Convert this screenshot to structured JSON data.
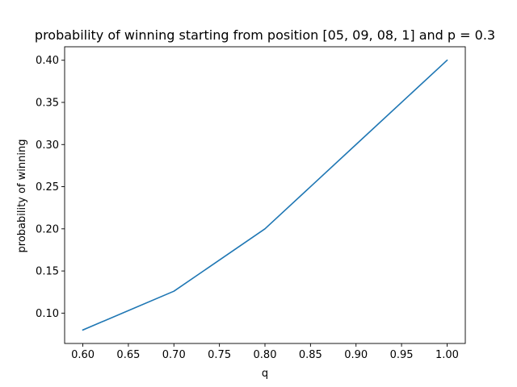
{
  "chart_data": {
    "type": "line",
    "title": "probability of winning starting from position [05, 09, 08, 1] and p = 0.3",
    "xlabel": "q",
    "ylabel": "probability of winning",
    "xlim": [
      0.58,
      1.02
    ],
    "ylim": [
      0.064,
      0.416
    ],
    "x_ticks": [
      "0.60",
      "0.65",
      "0.70",
      "0.75",
      "0.80",
      "0.85",
      "0.90",
      "0.95",
      "1.00"
    ],
    "y_ticks": [
      "0.10",
      "0.15",
      "0.20",
      "0.25",
      "0.30",
      "0.35",
      "0.40"
    ],
    "grid": false,
    "legend": "none",
    "series": [
      {
        "color": "#1f77b4",
        "x": [
          0.6,
          0.7,
          0.8,
          0.9,
          1.0
        ],
        "y": [
          0.08,
          0.126,
          0.2,
          0.3,
          0.4
        ]
      }
    ]
  }
}
